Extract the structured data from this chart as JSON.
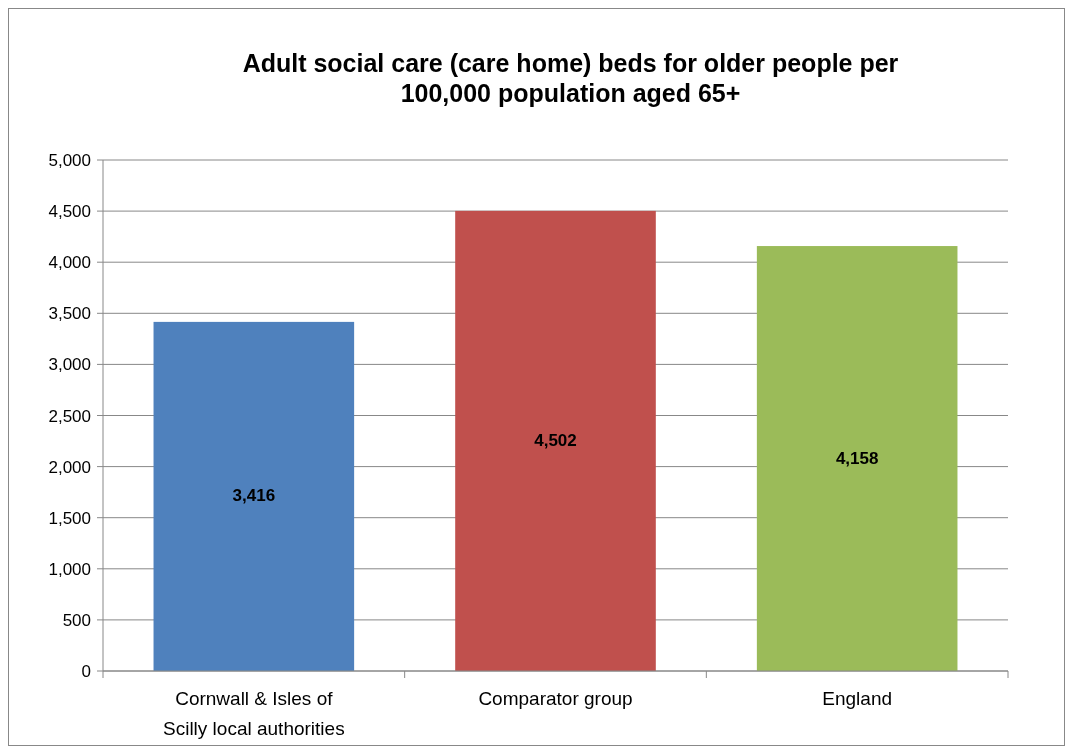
{
  "chart_data": {
    "type": "bar",
    "title": "Adult social care (care home) beds for older people per 100,000 population aged 65+",
    "categories": [
      "Cornwall & Isles of Scilly local authorities",
      "Comparator group",
      "England"
    ],
    "values": [
      3416,
      4502,
      4158
    ],
    "colors": [
      "#4f81bd",
      "#c0504d",
      "#9bbb59"
    ],
    "ylim": [
      0,
      5000
    ],
    "yticks": [
      {
        "value": 0,
        "label": "0"
      },
      {
        "value": 500,
        "label": "500"
      },
      {
        "value": 1000,
        "label": "1,000"
      },
      {
        "value": 1500,
        "label": "1,500"
      },
      {
        "value": 2000,
        "label": "2,000"
      },
      {
        "value": 2500,
        "label": "2,500"
      },
      {
        "value": 3000,
        "label": "3,000"
      },
      {
        "value": 3500,
        "label": "3,500"
      },
      {
        "value": 4000,
        "label": "4,000"
      },
      {
        "value": 4500,
        "label": "4,500"
      },
      {
        "value": 5000,
        "label": "5,000"
      }
    ],
    "value_labels": [
      "3,416",
      "4,502",
      "4,158"
    ],
    "grid": "y"
  }
}
